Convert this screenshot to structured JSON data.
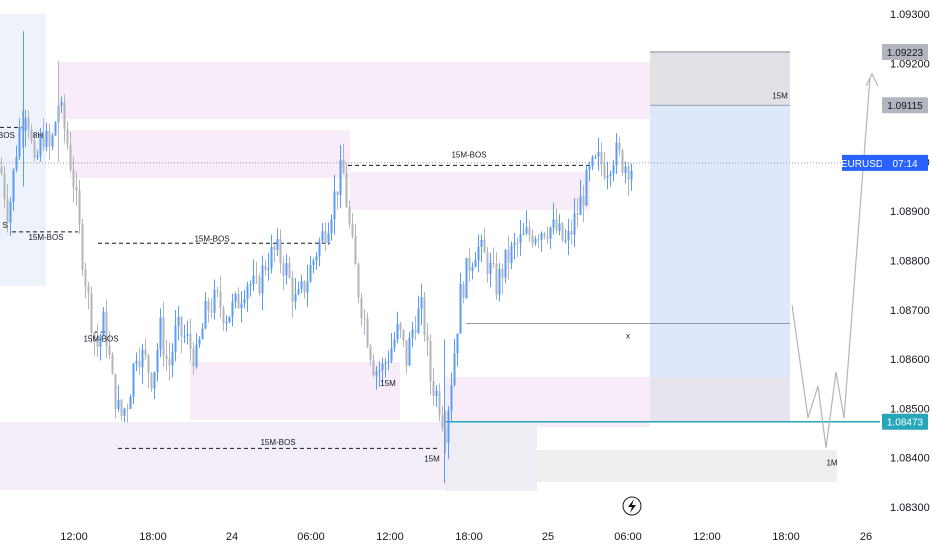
{
  "chart_data": {
    "type": "candlestick",
    "symbol": "EURUSD",
    "countdown": "07:14",
    "price_range": [
      1.0825,
      1.0935
    ],
    "y_ticks": [
      "1.09300",
      "1.09200",
      "1.09000",
      "1.08900",
      "1.08800",
      "1.08700",
      "1.08600",
      "1.08500",
      "1.08400",
      "1.08300"
    ],
    "x_ticks": [
      {
        "label": "12:00",
        "x": 74
      },
      {
        "label": "18:00",
        "x": 153
      },
      {
        "label": "24",
        "x": 232
      },
      {
        "label": "06:00",
        "x": 311
      },
      {
        "label": "12:00",
        "x": 390
      },
      {
        "label": "18:00",
        "x": 469
      },
      {
        "label": "25",
        "x": 548
      },
      {
        "label": "06:00",
        "x": 628
      },
      {
        "label": "12:00",
        "x": 707
      },
      {
        "label": "18:00",
        "x": 786
      },
      {
        "label": "26",
        "x": 866
      }
    ],
    "price_tags": [
      {
        "label": "1.09223",
        "price": 1.09223,
        "bg": "#b2b5be",
        "fg": "#131722"
      },
      {
        "label": "1.09115",
        "price": 1.09115,
        "bg": "#b2b5be",
        "fg": "#131722"
      },
      {
        "label": "1.08473",
        "price": 1.08473,
        "bg": "#26a6b8",
        "fg": "#ffffff"
      }
    ],
    "current_price": 1.08998,
    "annotations": [
      {
        "text": "15M-BOS",
        "x": 212,
        "price": 1.08845
      },
      {
        "text": "15M-BOS",
        "x": 469,
        "price": 1.09015
      },
      {
        "text": "15M-BOS",
        "x": 101,
        "price": 1.08642
      },
      {
        "text": "15M-BOS",
        "x": 46,
        "price": 1.08848
      },
      {
        "text": "15M-BOS",
        "x": 278,
        "price": 1.08432
      },
      {
        "text": "15M",
        "x": 388,
        "price": 1.08552
      },
      {
        "text": "15M",
        "x": 432,
        "price": 1.08398
      },
      {
        "text": "15M",
        "x": 780,
        "price": 1.09135
      },
      {
        "text": "1M",
        "x": 832,
        "price": 1.0839
      },
      {
        "text": "x",
        "x": 628,
        "price": 1.08648
      },
      {
        "text": "-BOS",
        "x": 5,
        "price": 1.09055
      },
      {
        "text": "8H",
        "x": 38,
        "price": 1.09055
      },
      {
        "text": "S",
        "x": 5,
        "price": 1.08872
      }
    ],
    "colors": {
      "bull": "#5b9cf6",
      "bear": "#b2b5be",
      "pink_zone": "#f7ecf7",
      "blue_zone": "#dde8fb",
      "grey_zone": "#e8e6ea",
      "cyan_line": "#26a6b8"
    }
  }
}
